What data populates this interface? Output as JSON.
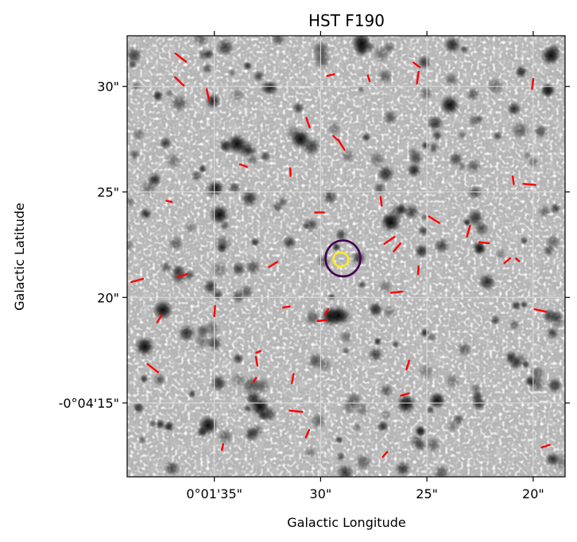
{
  "chart_data": {
    "type": "image",
    "title": "HST F190",
    "xlabel": "Galactic Longitude",
    "ylabel": "Galactic Latitude",
    "colormap": "gray_r",
    "grid": true,
    "x_ticks": [
      {
        "value": 35,
        "label": "0°01'35\""
      },
      {
        "value": 30,
        "label": "30\""
      },
      {
        "value": 25,
        "label": "25\""
      },
      {
        "value": 20,
        "label": "20\""
      }
    ],
    "y_ticks": [
      {
        "value": 15,
        "label": "-0°04'15\""
      },
      {
        "value": 20,
        "label": "20\""
      },
      {
        "value": 25,
        "label": "25\""
      },
      {
        "value": 30,
        "label": "30\""
      }
    ],
    "xlim": [
      39.1,
      18.5
    ],
    "ylim": [
      32.4,
      11.5
    ],
    "contours": [
      {
        "color": "#440154",
        "center": [
          28.95,
          21.85
        ],
        "rx": 0.82,
        "ry": 0.85
      },
      {
        "color": "#fde725",
        "center": [
          29.05,
          21.8
        ],
        "rx": 0.36,
        "ry": 0.33
      }
    ],
    "vector_color": "#ff0000"
  }
}
